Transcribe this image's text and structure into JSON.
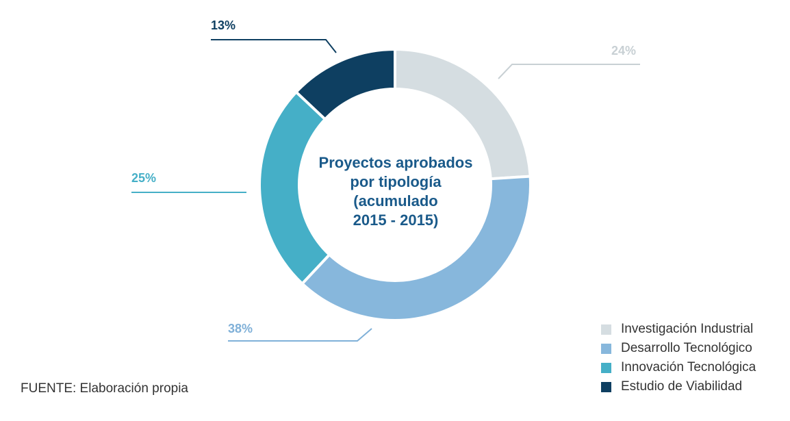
{
  "chart_data": {
    "type": "pie",
    "variant": "donut",
    "title_lines": [
      "Proyectos aprobados",
      "por tipología",
      "(acumulado",
      "2015 - 2015)"
    ],
    "categories": [
      "Investigación Industrial",
      "Desarrollo Tecnológico",
      "Innovación Tecnológica",
      "Estudio de Viabilidad"
    ],
    "values": [
      24,
      38,
      25,
      13
    ],
    "labels": [
      "24%",
      "38%",
      "25%",
      "13%"
    ],
    "colors": [
      "#d5dde1",
      "#87b7dc",
      "#45afc7",
      "#0e3f61"
    ],
    "label_colors": [
      "#c8d0d4",
      "#7fb0d8",
      "#45afc7",
      "#0e3f61"
    ],
    "legend_position": "bottom-right"
  },
  "source": "FUENTE: Elaboración propia"
}
